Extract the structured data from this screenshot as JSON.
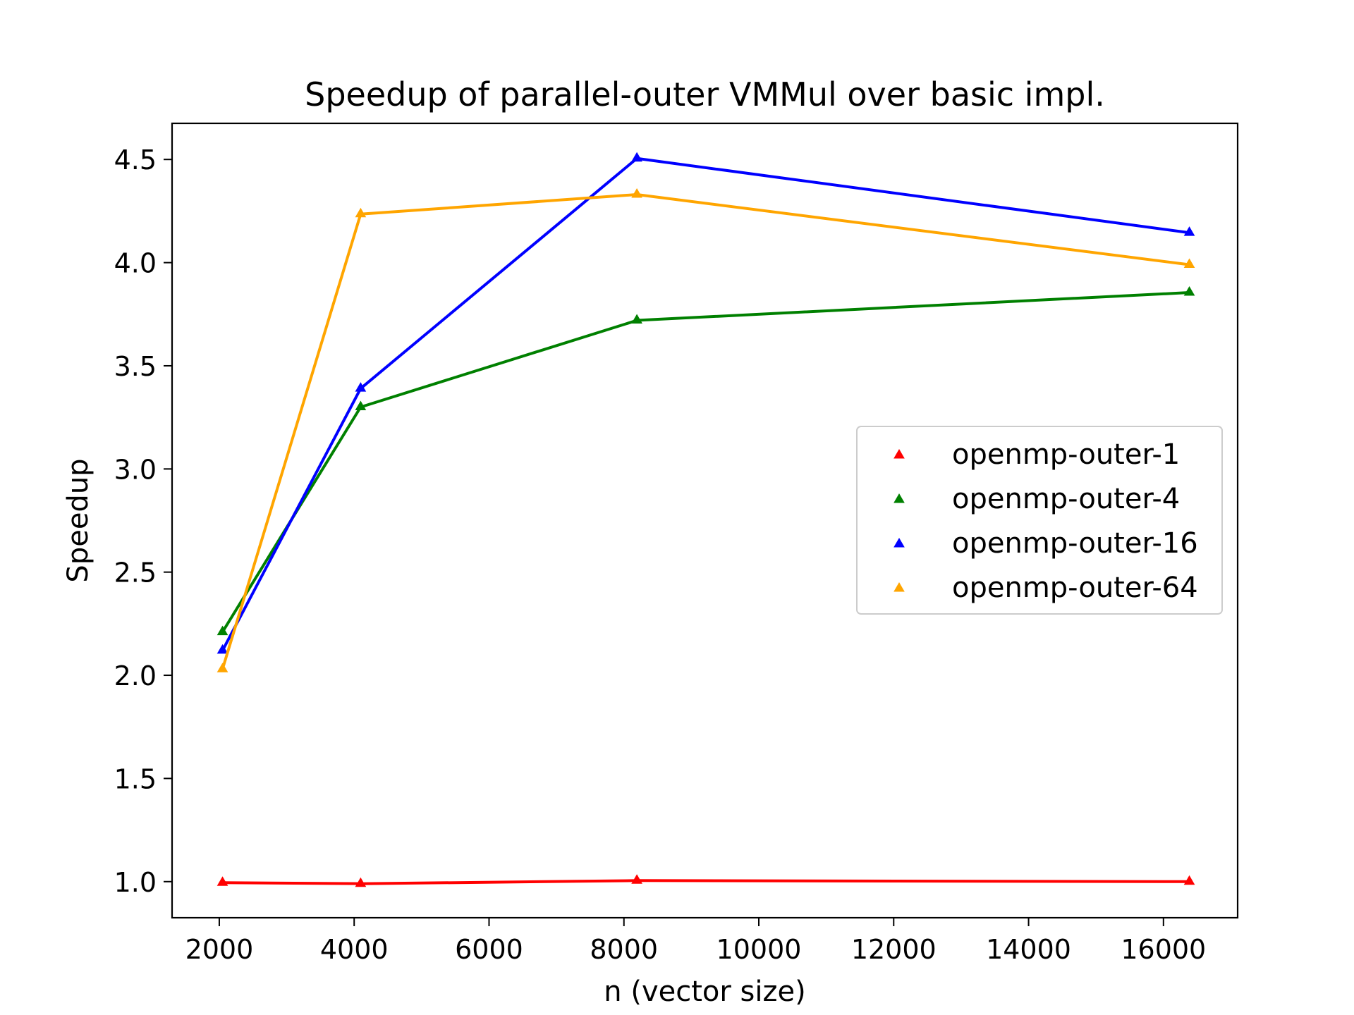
{
  "chart_data": {
    "type": "line",
    "title": "Speedup of parallel-outer VMMul over basic impl.",
    "xlabel": "n (vector size)",
    "ylabel": "Speedup",
    "xlim": [
      1300,
      17100
    ],
    "ylim": [
      0.825,
      4.675
    ],
    "xticks": [
      2000,
      4000,
      6000,
      8000,
      10000,
      12000,
      14000,
      16000
    ],
    "yticks": [
      1.0,
      1.5,
      2.0,
      2.5,
      3.0,
      3.5,
      4.0,
      4.5
    ],
    "xtick_labels": [
      "2000",
      "4000",
      "6000",
      "8000",
      "10000",
      "12000",
      "14000",
      "16000"
    ],
    "ytick_labels": [
      "1.0",
      "1.5",
      "2.0",
      "2.5",
      "3.0",
      "3.5",
      "4.0",
      "4.5"
    ],
    "x": [
      2048,
      4096,
      8192,
      16384
    ],
    "series": [
      {
        "name": "openmp-outer-1",
        "color": "#ff0000",
        "values": [
          0.995,
          0.99,
          1.005,
          1.0
        ]
      },
      {
        "name": "openmp-outer-4",
        "color": "#008000",
        "values": [
          2.21,
          3.3,
          3.72,
          3.855
        ]
      },
      {
        "name": "openmp-outer-16",
        "color": "#0000ff",
        "values": [
          2.12,
          3.39,
          4.505,
          4.145
        ]
      },
      {
        "name": "openmp-outer-64",
        "color": "#ffa500",
        "values": [
          2.03,
          4.235,
          4.33,
          3.99
        ]
      }
    ],
    "marker": "triangle-up-icon",
    "grid": false,
    "legend_position": "center-right"
  }
}
